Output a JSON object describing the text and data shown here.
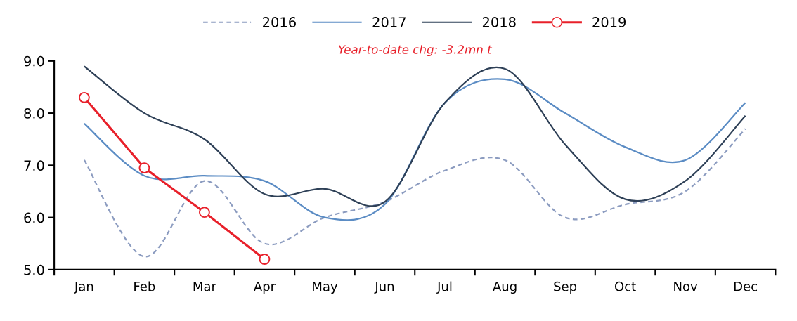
{
  "chart_data": {
    "type": "line",
    "annotations": [
      "Year-to-date chg: -3.2mn t"
    ],
    "categories": [
      "Jan",
      "Feb",
      "Mar",
      "Apr",
      "May",
      "Jun",
      "Jul",
      "Aug",
      "Sep",
      "Oct",
      "Nov",
      "Dec"
    ],
    "series": [
      {
        "name": "2016",
        "color": "#8c9cc0",
        "line_style": "dashed",
        "marker": "none",
        "values": [
          7.1,
          5.25,
          6.7,
          5.5,
          6.0,
          6.3,
          6.9,
          7.1,
          6.0,
          6.25,
          6.5,
          7.7
        ]
      },
      {
        "name": "2017",
        "color": "#5b8cc4",
        "line_style": "solid",
        "marker": "none",
        "values": [
          7.8,
          6.8,
          6.8,
          6.7,
          6.0,
          6.25,
          8.2,
          8.65,
          8.0,
          7.35,
          7.1,
          8.2
        ]
      },
      {
        "name": "2018",
        "color": "#2e4057",
        "line_style": "solid",
        "marker": "none",
        "values": [
          8.9,
          8.0,
          7.5,
          6.45,
          6.55,
          6.3,
          8.2,
          8.85,
          7.4,
          6.35,
          6.7,
          7.95
        ]
      },
      {
        "name": "2019",
        "color": "#e8202a",
        "line_style": "solid",
        "marker": "circle",
        "values": [
          8.3,
          6.95,
          6.1,
          5.2,
          null,
          null,
          null,
          null,
          null,
          null,
          null,
          null
        ]
      }
    ],
    "ylim": [
      5,
      9
    ],
    "yticks": [
      {
        "value": 5,
        "label": "5.0"
      },
      {
        "value": 6,
        "label": "6.0"
      },
      {
        "value": 7,
        "label": "7.0"
      },
      {
        "value": 8,
        "label": "8.0"
      },
      {
        "value": 9,
        "label": "9.0"
      }
    ],
    "grid": false,
    "legend": "top"
  }
}
